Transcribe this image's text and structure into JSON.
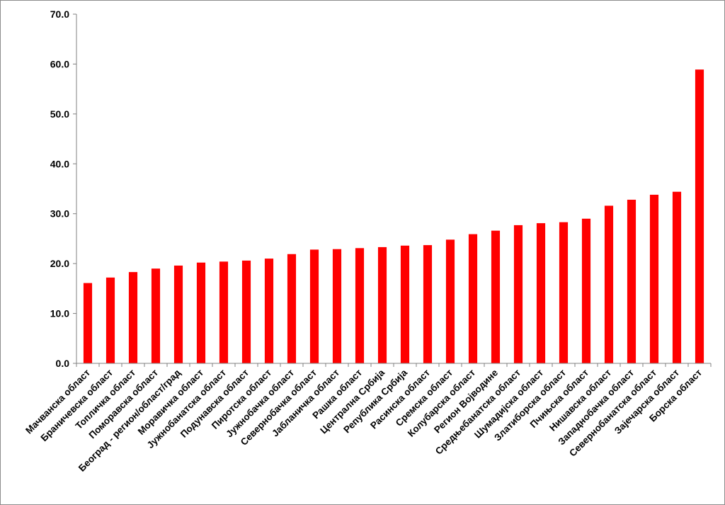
{
  "chart_data": {
    "type": "bar",
    "title": "",
    "xlabel": "",
    "ylabel": "",
    "ylim": [
      0,
      70
    ],
    "yticks": [
      "0.0",
      "10.0",
      "20.0",
      "30.0",
      "40.0",
      "50.0",
      "60.0",
      "70.0"
    ],
    "grid": false,
    "legend": "none",
    "bar_color": "#ff0000",
    "axis_color": "#808080",
    "categories": [
      "Мачванска област",
      "Браничевска област",
      "Топличка област",
      "Поморавска област",
      "Београд - регион/област/град",
      "Моравичка област",
      "Јужнобанатска област",
      "Подунавска област",
      "Пиротска област",
      "Јужнобачка област",
      "Севернобачка област",
      "Јабланичка област",
      "Рашка област",
      "Централна Србија",
      "Република Србија",
      "Расинска област",
      "Сремска област",
      "Колубарска област",
      "Регион Војводине",
      "Средњебанатска област",
      "Шумадијска област",
      "Златиборска област",
      "Пчињска област",
      "Нишавска област",
      "Западнобачка област",
      "Севернобанатска област",
      "Зајечарска област",
      "Борска област"
    ],
    "values": [
      16.1,
      17.2,
      18.3,
      19.0,
      19.6,
      20.2,
      20.4,
      20.6,
      21.0,
      21.9,
      22.8,
      22.9,
      23.1,
      23.3,
      23.6,
      23.7,
      24.8,
      25.9,
      26.6,
      27.7,
      28.1,
      28.3,
      29.0,
      31.6,
      32.8,
      33.8,
      34.4,
      58.9
    ]
  }
}
